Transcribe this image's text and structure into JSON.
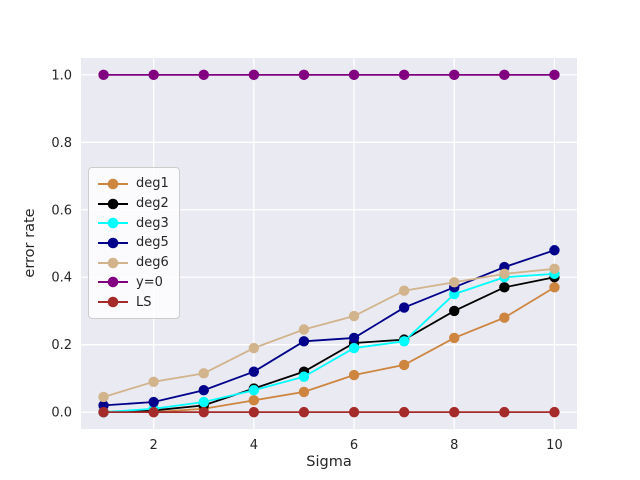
{
  "chart_data": {
    "type": "line",
    "title": "",
    "xlabel": "Sigma",
    "ylabel": "error rate",
    "x": [
      1,
      2,
      3,
      4,
      5,
      6,
      7,
      8,
      9,
      10
    ],
    "xticks": [
      2,
      4,
      6,
      8,
      10
    ],
    "yticks": [
      0.0,
      0.2,
      0.4,
      0.6,
      0.8,
      1.0
    ],
    "xlim": [
      0.55,
      10.45
    ],
    "ylim": [
      -0.05,
      1.05
    ],
    "grid": true,
    "grid_color": "#ffffff",
    "plot_background": "#EAEAF2",
    "legend_position": "center-left",
    "series": [
      {
        "name": "deg1",
        "color": "#CD853F",
        "values": [
          0.0,
          0.0,
          0.01,
          0.035,
          0.06,
          0.11,
          0.14,
          0.22,
          0.28,
          0.37
        ]
      },
      {
        "name": "deg2",
        "color": "#000000",
        "values": [
          0.0,
          0.005,
          0.02,
          0.07,
          0.12,
          0.205,
          0.215,
          0.3,
          0.37,
          0.4
        ]
      },
      {
        "name": "deg3",
        "color": "#00FFFF",
        "values": [
          0.0,
          0.01,
          0.03,
          0.065,
          0.105,
          0.19,
          0.21,
          0.35,
          0.4,
          0.41
        ]
      },
      {
        "name": "deg5",
        "color": "#00008B",
        "values": [
          0.02,
          0.03,
          0.065,
          0.12,
          0.21,
          0.22,
          0.31,
          0.37,
          0.43,
          0.48
        ]
      },
      {
        "name": "deg6",
        "color": "#D2B48C",
        "values": [
          0.045,
          0.09,
          0.115,
          0.19,
          0.245,
          0.285,
          0.36,
          0.385,
          0.41,
          0.425
        ]
      },
      {
        "name": "y=0",
        "color": "#800080",
        "values": [
          1.0,
          1.0,
          1.0,
          1.0,
          1.0,
          1.0,
          1.0,
          1.0,
          1.0,
          1.0
        ]
      },
      {
        "name": "LS",
        "color": "#A52A2A",
        "values": [
          0.0,
          0.0,
          0.0,
          0.0,
          0.0,
          0.0,
          0.0,
          0.0,
          0.0,
          0.0
        ]
      }
    ]
  }
}
